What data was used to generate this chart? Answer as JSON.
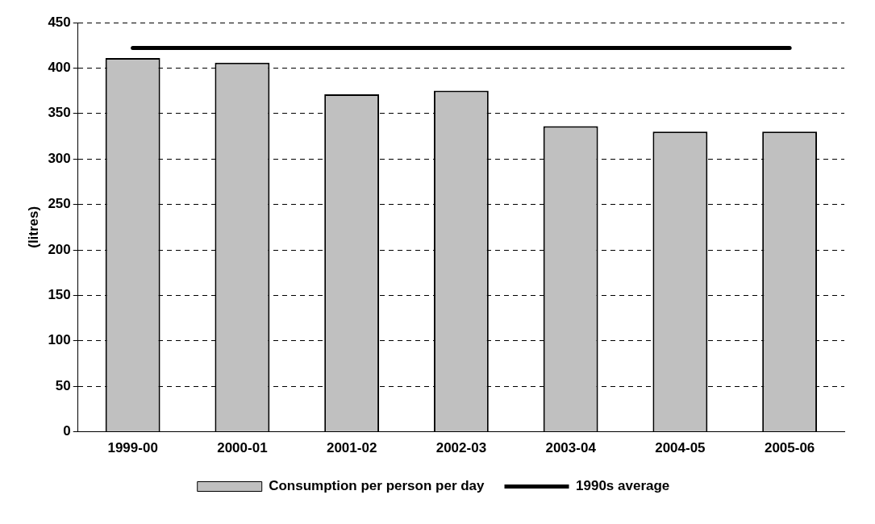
{
  "chart_data": {
    "type": "bar",
    "ylabel": "(litres)",
    "categories": [
      "1999-00",
      "2000-01",
      "2001-02",
      "2002-03",
      "2003-04",
      "2004-05",
      "2005-06"
    ],
    "series": [
      {
        "name": "Consumption per person per day",
        "color": "#c0c0c0",
        "values": [
          411,
          406,
          371,
          375,
          336,
          330,
          330
        ]
      },
      {
        "name": "1990s average",
        "type": "line",
        "color": "#000000",
        "values": [
          422,
          422,
          422,
          422,
          422,
          422,
          422
        ]
      }
    ],
    "ylim": [
      0,
      450
    ],
    "yticks": [
      0,
      50,
      100,
      150,
      200,
      250,
      300,
      350,
      400,
      450
    ],
    "grid": "y",
    "legend": "bottom",
    "marker": "none"
  }
}
